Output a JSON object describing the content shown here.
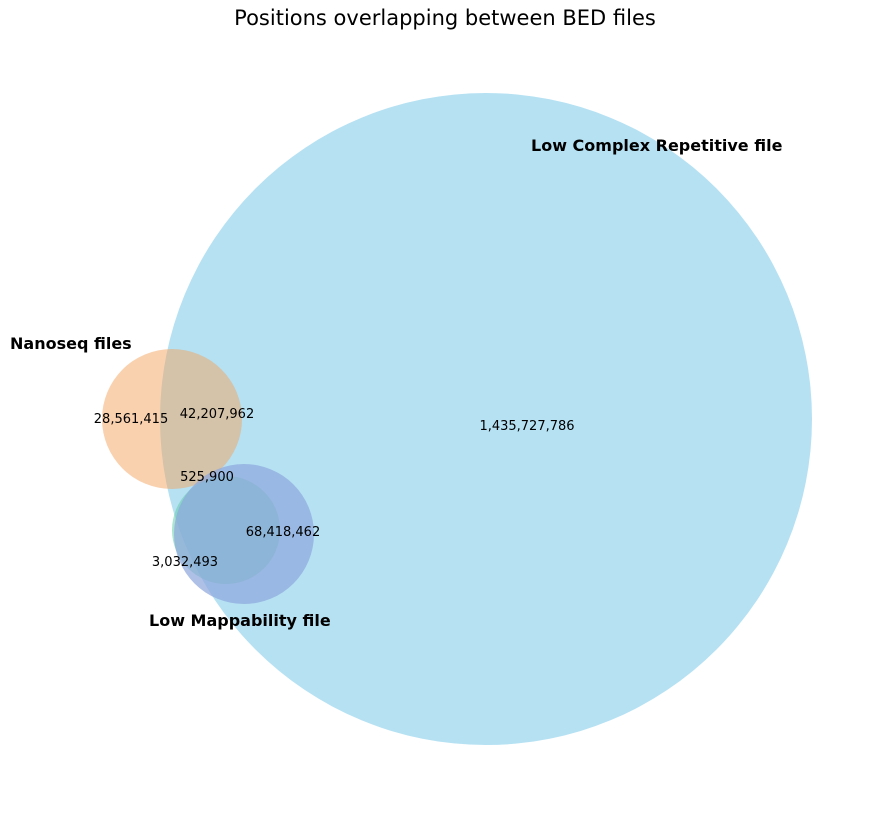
{
  "title": "Positions overlapping between BED files",
  "sets": {
    "low_complex": {
      "label": "Low Complex Repetitive file",
      "color": "#87CEEB"
    },
    "nanoseq": {
      "label": "Nanoseq files",
      "color": "#F4A460"
    },
    "low_mappability": {
      "label": "Low Mappability file",
      "color": "#66CDAA"
    }
  },
  "regions": {
    "nanoseq_only": "28,561,415",
    "nanoseq_and_low_complex": "42,207,962",
    "low_complex_only": "1,435,727,786",
    "all_three": "525,900",
    "low_mappability_and_low_complex": "68,418,462",
    "low_mappability_only": "3,032,493"
  }
}
